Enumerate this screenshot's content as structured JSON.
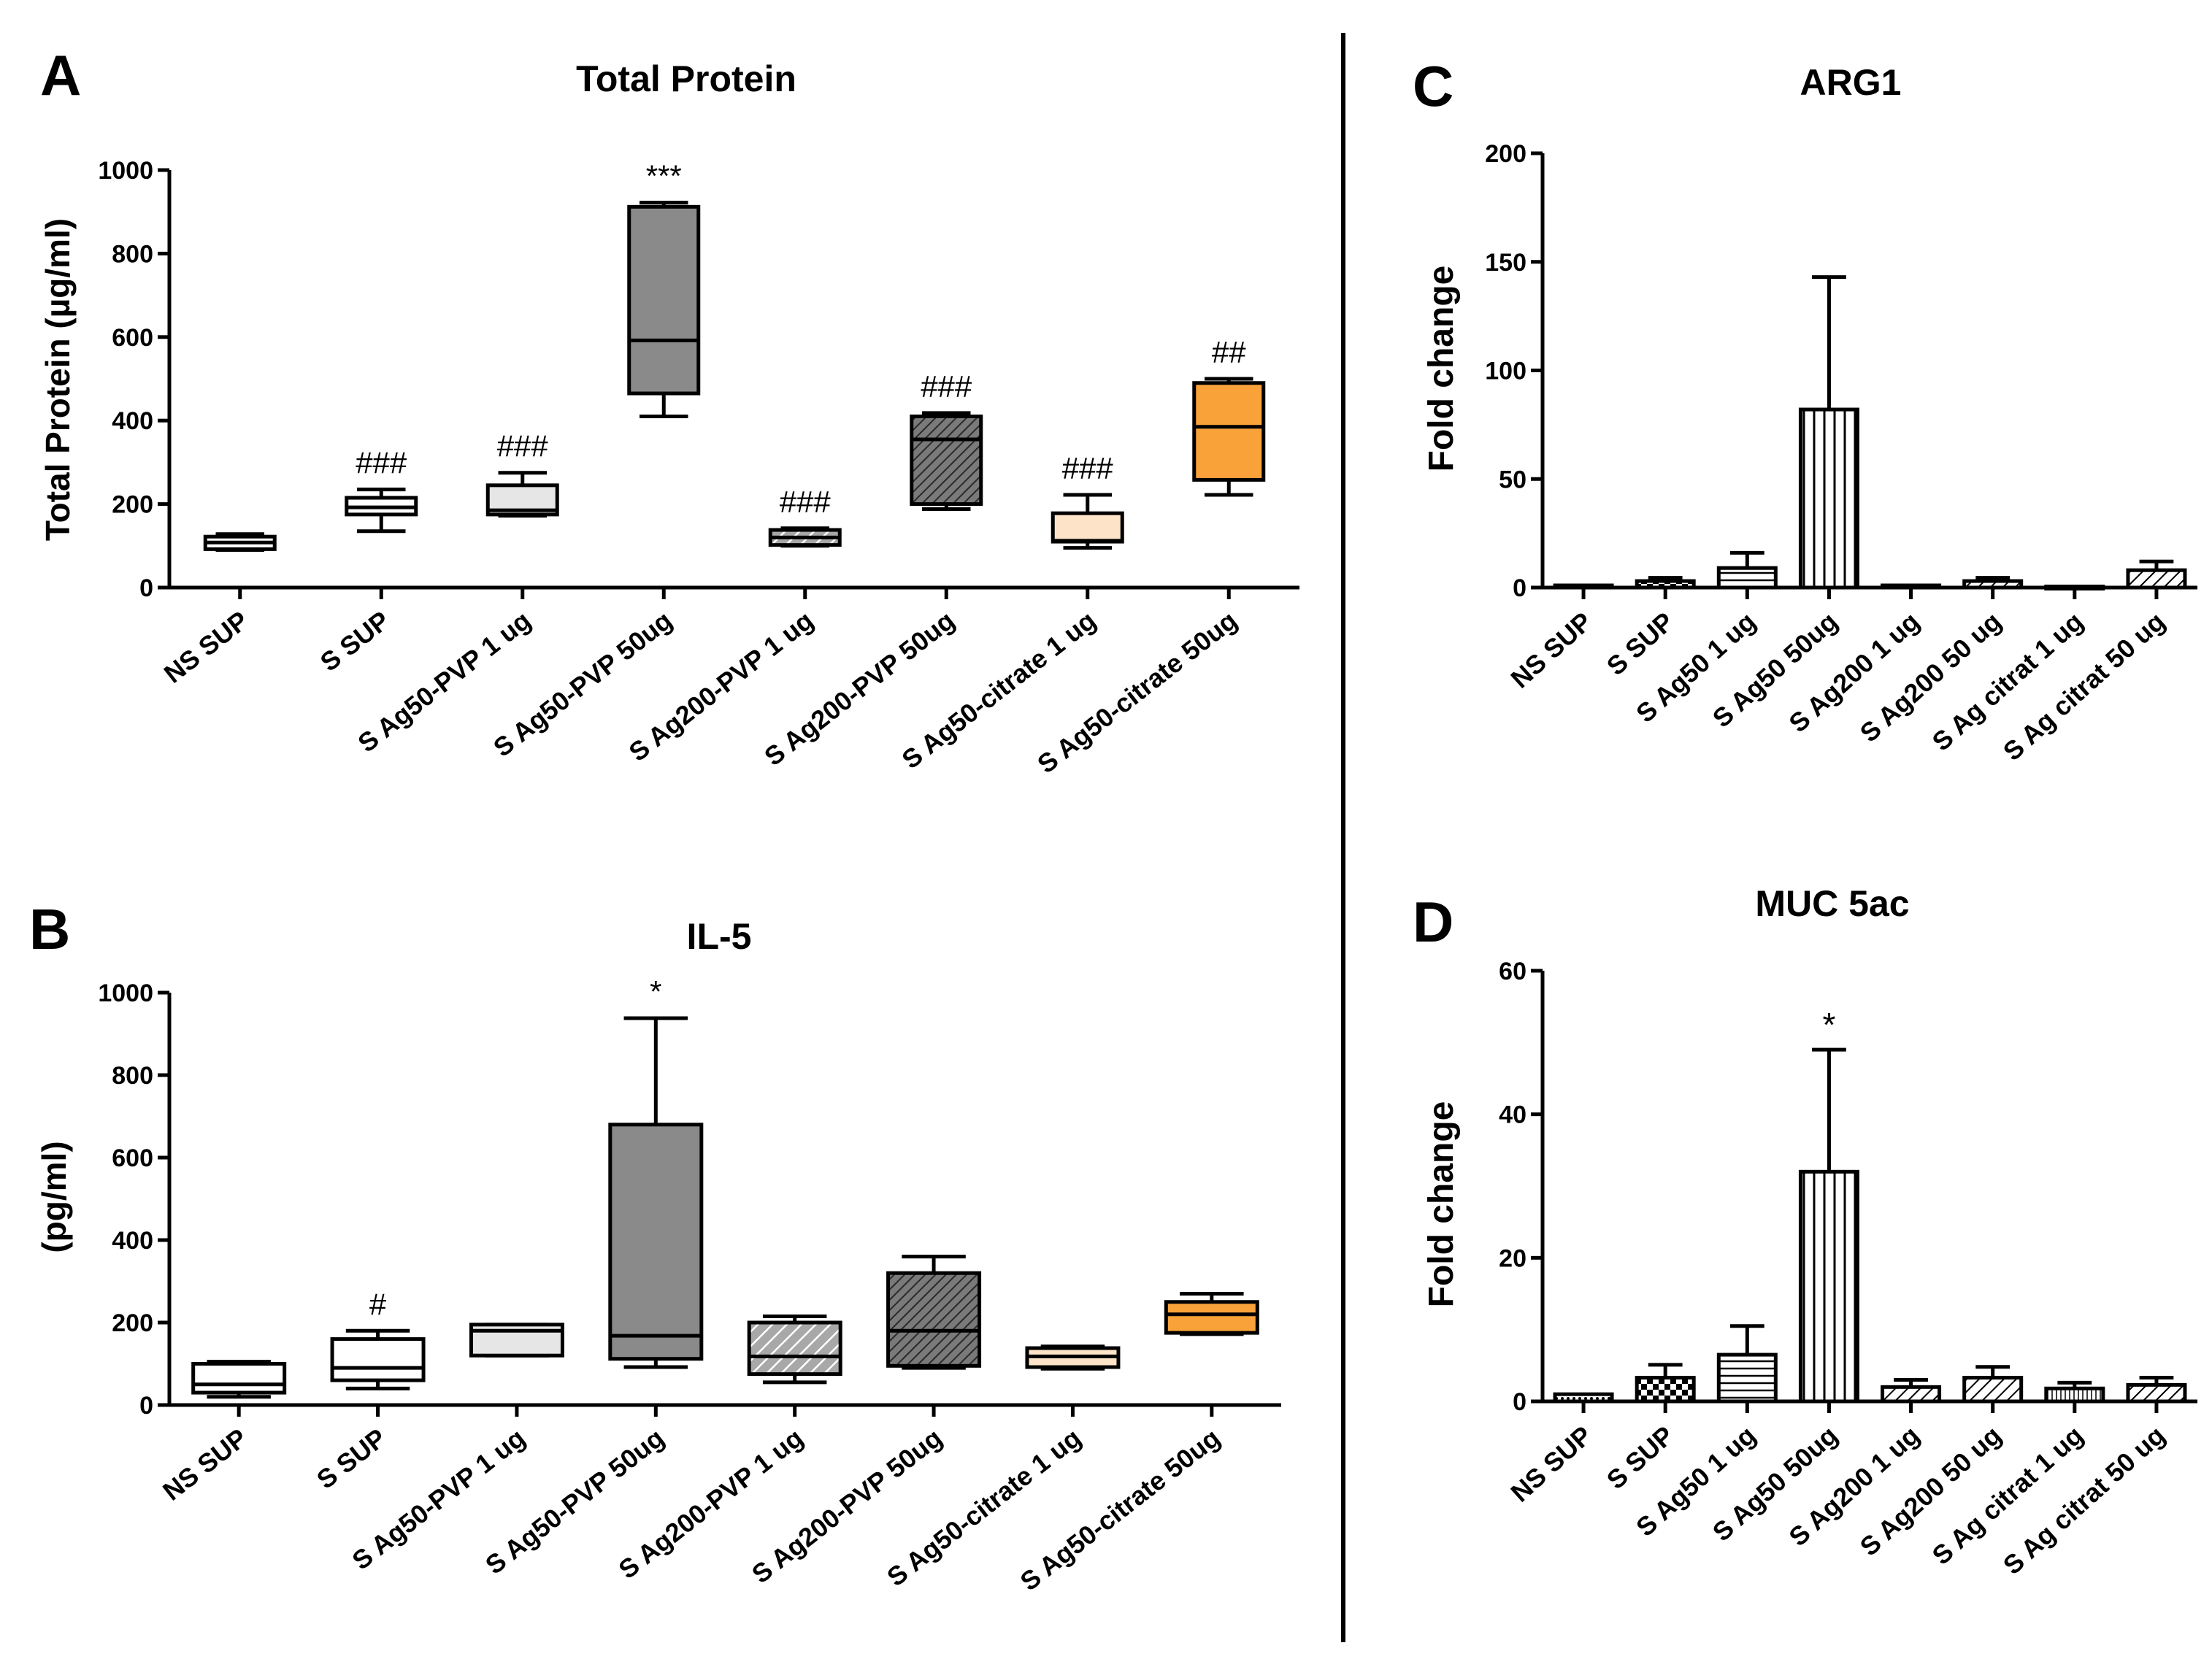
{
  "panel_letters": [
    "A",
    "B",
    "C",
    "D"
  ],
  "chart_data": [
    {
      "type": "box",
      "panel": "A",
      "title": "Total Protein",
      "xlabel": "",
      "ylabel": "Total Protein (µg/ml)",
      "ylim": [
        0,
        1000
      ],
      "yticks": [
        "0",
        "200",
        "400",
        "600",
        "800",
        "1000"
      ],
      "categories": [
        "NS SUP",
        "S SUP",
        "S Ag50-PVP 1 ug",
        "S Ag50-PVP 50ug",
        "S Ag200-PVP 1 ug",
        "S Ag200-PVP 50ug",
        "S Ag50-citrate 1 ug",
        "S Ag50-citrate 50ug"
      ],
      "series": [
        {
          "name": "NS SUP",
          "min": 90,
          "q1": 92,
          "median": 108,
          "q3": 122,
          "max": 128,
          "fill": "#ffffff",
          "pattern": "none"
        },
        {
          "name": "S SUP",
          "min": 135,
          "q1": 175,
          "median": 192,
          "q3": 215,
          "max": 235,
          "fill": "#ffffff",
          "pattern": "none"
        },
        {
          "name": "S Ag50-PVP 1 ug",
          "min": 172,
          "q1": 175,
          "median": 185,
          "q3": 245,
          "max": 275,
          "fill": "#e6e6e6",
          "pattern": "none"
        },
        {
          "name": "S Ag50-PVP 50ug",
          "min": 410,
          "q1": 465,
          "median": 592,
          "q3": 912,
          "max": 922,
          "fill": "#8a8a8a",
          "pattern": "none"
        },
        {
          "name": "S Ag200-PVP 1 ug",
          "min": 100,
          "q1": 102,
          "median": 120,
          "q3": 138,
          "max": 142,
          "fill": "#a8a8a8",
          "pattern": "light"
        },
        {
          "name": "S Ag200-PVP 50ug",
          "min": 188,
          "q1": 200,
          "median": 355,
          "q3": 410,
          "max": 418,
          "fill": "#555555",
          "pattern": "dense"
        },
        {
          "name": "S Ag50-citrate 1 ug",
          "min": 95,
          "q1": 110,
          "median": 112,
          "q3": 178,
          "max": 222,
          "fill": "#fde4c8",
          "pattern": "none"
        },
        {
          "name": "S Ag50-citrate 50ug",
          "min": 222,
          "q1": 258,
          "median": 385,
          "q3": 490,
          "max": 500,
          "fill": "#f9a23a",
          "pattern": "none"
        }
      ],
      "annotations": [
        "",
        "###",
        "###",
        "***",
        "###",
        "###",
        "###",
        "##"
      ]
    },
    {
      "type": "box",
      "panel": "B",
      "title": "IL-5",
      "xlabel": "",
      "ylabel": "(pg/ml)",
      "ylim": [
        0,
        1000
      ],
      "yticks": [
        "0",
        "200",
        "400",
        "600",
        "800",
        "1000"
      ],
      "categories": [
        "NS SUP",
        "S SUP",
        "S Ag50-PVP 1 ug",
        "S Ag50-PVP 50ug",
        "S Ag200-PVP 1 ug",
        "S Ag200-PVP 50ug",
        "S Ag50-citrate 1 ug",
        "S Ag50-citrate 50ug"
      ],
      "series": [
        {
          "name": "NS SUP",
          "min": 20,
          "q1": 30,
          "median": 50,
          "q3": 100,
          "max": 105,
          "fill": "#ffffff",
          "pattern": "none"
        },
        {
          "name": "S SUP",
          "min": 40,
          "q1": 60,
          "median": 90,
          "q3": 160,
          "max": 180,
          "fill": "#ffffff",
          "pattern": "none"
        },
        {
          "name": "S Ag50-PVP 1 ug",
          "min": 120,
          "q1": 120,
          "median": 180,
          "q3": 195,
          "max": 195,
          "fill": "#e6e6e6",
          "pattern": "none"
        },
        {
          "name": "S Ag50-PVP 50ug",
          "min": 92,
          "q1": 112,
          "median": 168,
          "q3": 680,
          "max": 938,
          "fill": "#8a8a8a",
          "pattern": "none"
        },
        {
          "name": "S Ag200-PVP 1 ug",
          "min": 55,
          "q1": 75,
          "median": 118,
          "q3": 200,
          "max": 215,
          "fill": "#b5b5b5",
          "pattern": "light"
        },
        {
          "name": "S Ag200-PVP 50ug",
          "min": 90,
          "q1": 95,
          "median": 180,
          "q3": 320,
          "max": 360,
          "fill": "#555555",
          "pattern": "dense"
        },
        {
          "name": "S Ag50-citrate 1 ug",
          "min": 88,
          "q1": 92,
          "median": 118,
          "q3": 138,
          "max": 142,
          "fill": "#fde4c8",
          "pattern": "none"
        },
        {
          "name": "S Ag50-citrate 50ug",
          "min": 172,
          "q1": 175,
          "median": 220,
          "q3": 250,
          "max": 270,
          "fill": "#f9a23a",
          "pattern": "none"
        }
      ],
      "annotations": [
        "",
        "#",
        "",
        "*",
        "",
        "",
        "",
        ""
      ]
    },
    {
      "type": "bar",
      "panel": "C",
      "title": "ARG1",
      "xlabel": "",
      "ylabel": "Fold change",
      "ylim": [
        0,
        200
      ],
      "yticks": [
        "0",
        "50",
        "100",
        "150",
        "200"
      ],
      "categories": [
        "NS SUP",
        "S SUP",
        "S Ag50 1 ug",
        "S Ag50 50ug",
        "S Ag200 1 ug",
        "S Ag200 50 ug",
        "S Ag citrat 1 ug",
        "S Ag citrat 50 ug"
      ],
      "values": [
        1,
        3,
        9,
        82,
        1,
        3,
        0.5,
        8
      ],
      "errors": [
        0,
        1.5,
        7,
        61,
        0,
        1.5,
        0,
        4
      ],
      "patterns": [
        "dots",
        "checker",
        "hlines",
        "vlines",
        "hatch-right",
        "hatch-right",
        "vfine",
        "hatch-right"
      ],
      "annotations": [
        "",
        "",
        "",
        "",
        "",
        "",
        "",
        ""
      ]
    },
    {
      "type": "bar",
      "panel": "D",
      "title": "MUC 5ac",
      "xlabel": "",
      "ylabel": "Fold change",
      "ylim": [
        0,
        60
      ],
      "yticks": [
        "0",
        "20",
        "40",
        "60"
      ],
      "categories": [
        "NS SUP",
        "S SUP",
        "S Ag50 1 ug",
        "S Ag50 50ug",
        "S Ag200 1 ug",
        "S Ag200 50 ug",
        "S Ag citrat 1 ug",
        "S Ag citrat 50 ug"
      ],
      "values": [
        1,
        3.3,
        6.5,
        32,
        2,
        3.3,
        1.8,
        2.3
      ],
      "errors": [
        0,
        1.8,
        4,
        17,
        1,
        1.5,
        0.8,
        1
      ],
      "patterns": [
        "dots",
        "checker",
        "hlines",
        "vlines",
        "hatch-right",
        "hatch-right",
        "vfine",
        "hatch-right"
      ],
      "annotations": [
        "",
        "",
        "",
        "*",
        "",
        "",
        "",
        ""
      ]
    }
  ]
}
